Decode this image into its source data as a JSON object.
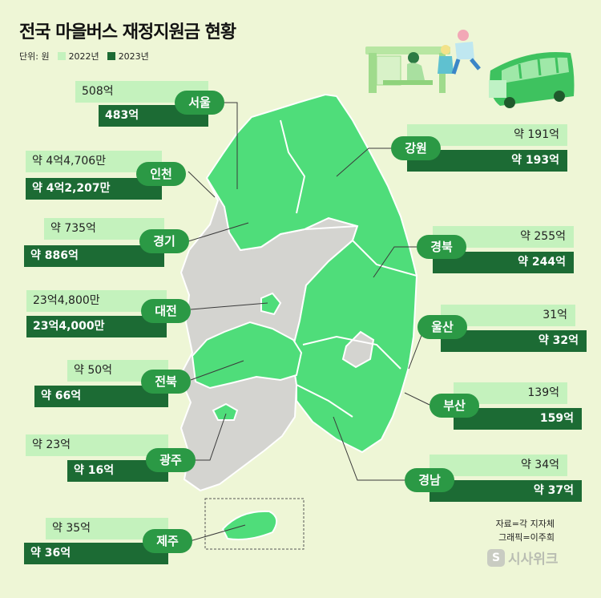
{
  "title": "전국 마을버스 재정지원금 현황",
  "legend": {
    "unit": "단위: 원",
    "y2022": "2022년",
    "y2023": "2023년"
  },
  "colors": {
    "y2022": "#c4f2bd",
    "y2023": "#1c6b34",
    "region_pill": "#2b9945",
    "map_supported": "#4fdd7a",
    "map_other": "#d4d4d0",
    "background": "#eef6d6"
  },
  "chart_data": {
    "type": "map",
    "title": "전국 마을버스 재정지원금 현황",
    "unit": "원",
    "series_names": [
      "2022년",
      "2023년"
    ],
    "regions": [
      {
        "name": "서울",
        "v2022": "508억",
        "v2023": "483억"
      },
      {
        "name": "인천",
        "v2022": "약 4억4,706만",
        "v2023": "약 4억2,207만"
      },
      {
        "name": "경기",
        "v2022": "약 735억",
        "v2023": "약 886억"
      },
      {
        "name": "대전",
        "v2022": "23억4,800만",
        "v2023": "23억4,000만"
      },
      {
        "name": "전북",
        "v2022": "약 50억",
        "v2023": "약 66억"
      },
      {
        "name": "광주",
        "v2022": "약 23억",
        "v2023": "약 16억"
      },
      {
        "name": "제주",
        "v2022": "약 35억",
        "v2023": "약 36억"
      },
      {
        "name": "강원",
        "v2022": "약 191억",
        "v2023": "약 193억"
      },
      {
        "name": "경북",
        "v2022": "약 255억",
        "v2023": "약 244억"
      },
      {
        "name": "울산",
        "v2022": "31억",
        "v2023": "약 32억"
      },
      {
        "name": "부산",
        "v2022": "139억",
        "v2023": "159억"
      },
      {
        "name": "경남",
        "v2022": "약 34억",
        "v2023": "약 37억"
      }
    ]
  },
  "source": {
    "data": "자료=각 지자체",
    "graphic": "그래픽=이주희"
  },
  "logo": {
    "text": "시사위크",
    "mark": "S"
  }
}
